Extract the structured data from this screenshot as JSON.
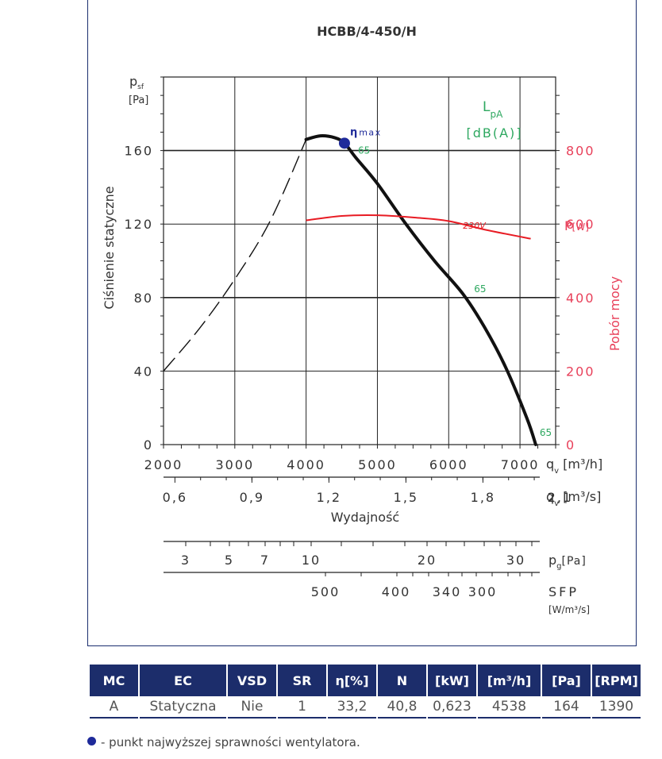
{
  "chart_data": {
    "type": "line",
    "title": "HCBB/4-450/H",
    "ylabel": "Ciśnienie statyczne",
    "ylabel_symbol": "p",
    "ylabel_symbol_sub": "sf",
    "ylabel_unit": "[Pa]",
    "y2label": "Pobór mocy",
    "y2label_symbol": "P",
    "y2label_unit": "[W]",
    "xlabel": "Wydajność",
    "xlabel_unit_h": "[m³/h]",
    "xlabel_unit_s": "[m³/s]",
    "xlabel_symbol": "q",
    "xlabel_symbol_sub": "v",
    "sound_label": "L",
    "sound_label_sub": "pA",
    "sound_unit": "[dB(A)]",
    "xlim": [
      2000,
      7500
    ],
    "ylim": [
      0,
      200
    ],
    "y2lim": [
      0,
      1000
    ],
    "x_ticks_h": [
      "2000",
      "3000",
      "4000",
      "5000",
      "6000",
      "7000"
    ],
    "y_ticks": [
      "0",
      "40",
      "80",
      "120",
      "160"
    ],
    "y2_ticks": [
      "0",
      "200",
      "400",
      "600",
      "800"
    ],
    "x_ticks_s": [
      {
        "label": "0,6",
        "q": 2160
      },
      {
        "label": "0,9",
        "q": 3240
      },
      {
        "label": "1,2",
        "q": 4320
      },
      {
        "label": "1,5",
        "q": 5400
      },
      {
        "label": "1,8",
        "q": 6480
      },
      {
        "label": "2,1",
        "q": 7560
      }
    ],
    "pg_label": "p",
    "pg_label_sub": "g",
    "pg_unit": "[Pa]",
    "pg_ticks": [
      "3",
      "5",
      "7",
      "10",
      "20",
      "30"
    ],
    "sfp_label": "SFP",
    "sfp_unit": "[W/m³/s]",
    "sfp_ticks": [
      "500",
      "400",
      "340",
      "300"
    ],
    "series": [
      {
        "name": "",
        "role": "pressure-unstable",
        "points": [
          [
            2000,
            40
          ],
          [
            2500,
            63
          ],
          [
            3000,
            90
          ],
          [
            3500,
            122
          ],
          [
            4000,
            166
          ]
        ]
      },
      {
        "name": "",
        "role": "pressure",
        "points": [
          [
            4000,
            166
          ],
          [
            4200,
            168
          ],
          [
            4400,
            167
          ],
          [
            4538,
            164
          ],
          [
            4700,
            156
          ],
          [
            5000,
            142
          ],
          [
            5400,
            120
          ],
          [
            5800,
            100
          ],
          [
            6200,
            82
          ],
          [
            6500,
            64
          ],
          [
            6800,
            42
          ],
          [
            7100,
            14
          ],
          [
            7220,
            0
          ]
        ]
      },
      {
        "name": "230V",
        "role": "power",
        "points": [
          [
            4000,
            610
          ],
          [
            4500,
            622
          ],
          [
            5000,
            624
          ],
          [
            5500,
            618
          ],
          [
            6000,
            608
          ],
          [
            6500,
            585
          ],
          [
            7150,
            560
          ]
        ]
      }
    ],
    "annotations": [
      {
        "text": "ηmax",
        "x": 4538,
        "y": 164
      },
      {
        "text": "65",
        "x": 4538,
        "y": 164
      },
      {
        "text": "65",
        "x": 6200,
        "y": 82
      },
      {
        "text": "65",
        "x": 7220,
        "y": 0
      }
    ],
    "max_efficiency_point": {
      "x": 4538,
      "y": 164
    }
  },
  "table": {
    "headers": [
      "MC",
      "EC",
      "VSD",
      "SR",
      "η[%]",
      "N",
      "[kW]",
      "[m³/h]",
      "[Pa]",
      "[RPM]"
    ],
    "rows": [
      [
        "A",
        "Statyczna",
        "Nie",
        "1",
        "33,2",
        "40,8",
        "0,623",
        "4538",
        "164",
        "1390"
      ]
    ]
  },
  "footnote": "- punkt najwyższej sprawności wentylatora.",
  "colors": {
    "frame": "#1a2e6e",
    "pressure": "#111111",
    "power": "#e81c24",
    "power_axis": "#e8405a",
    "sound": "#2ea860",
    "dot": "#1e2a9a",
    "header": "#1c2d6b"
  }
}
